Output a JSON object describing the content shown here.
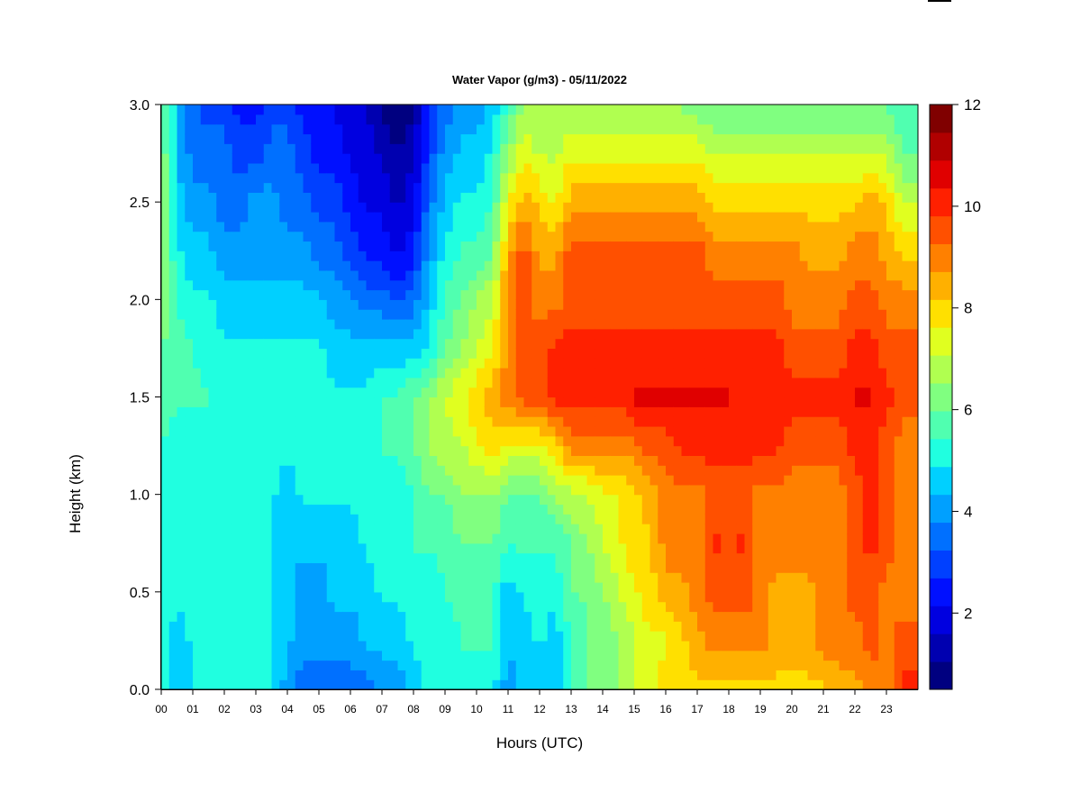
{
  "chart_data": {
    "type": "heatmap",
    "title": "Water Vapor (g/m3) - 05/11/2022",
    "xlabel": "Hours (UTC)",
    "ylabel": "Height (km)",
    "xlim": [
      0,
      24
    ],
    "ylim": [
      0,
      3.0
    ],
    "x_ticks": [
      "00",
      "01",
      "02",
      "03",
      "04",
      "05",
      "06",
      "07",
      "08",
      "09",
      "10",
      "11",
      "12",
      "13",
      "14",
      "15",
      "16",
      "17",
      "18",
      "19",
      "20",
      "21",
      "22",
      "23"
    ],
    "y_ticks": [
      "0.0",
      "0.5",
      "1.0",
      "1.5",
      "2.0",
      "2.5",
      "3.0"
    ],
    "colorbar": {
      "min": 0.5,
      "max": 12,
      "ticks": [
        "2",
        "4",
        "6",
        "8",
        "10",
        "12"
      ],
      "levels": [
        "#000080",
        "#0000B0",
        "#0000E0",
        "#0010FF",
        "#0040FF",
        "#0070FF",
        "#00A0FF",
        "#00D0FF",
        "#20FFE0",
        "#50FFB0",
        "#80FF80",
        "#B0FF50",
        "#E0FF20",
        "#FFE000",
        "#FFB000",
        "#FF8000",
        "#FF5000",
        "#FF2000",
        "#E00000",
        "#B00000",
        "#800000"
      ]
    },
    "x_hours": [
      0.0,
      0.5,
      1.0,
      1.5,
      2.0,
      2.5,
      3.0,
      3.5,
      4.0,
      4.5,
      5.0,
      5.5,
      6.0,
      6.5,
      7.0,
      7.5,
      8.0,
      8.5,
      9.0,
      9.5,
      10.0,
      10.5,
      11.0,
      11.5,
      12.0,
      12.5,
      13.0,
      13.5,
      14.0,
      14.5,
      15.0,
      15.5,
      16.0,
      16.5,
      17.0,
      17.5,
      18.0,
      18.5,
      19.0,
      19.5,
      20.0,
      20.5,
      21.0,
      21.5,
      22.0,
      22.5,
      23.0,
      23.5
    ],
    "y_km": [
      0.0,
      0.25,
      0.5,
      0.75,
      1.0,
      1.25,
      1.5,
      1.75,
      2.0,
      2.25,
      2.5,
      2.75,
      3.0
    ],
    "z_rows": [
      [
        5.5,
        4.5,
        5.0,
        5.0,
        5.0,
        5.0,
        5.0,
        5.0,
        4.0,
        3.5,
        3.5,
        3.5,
        3.5,
        3.5,
        4.0,
        4.0,
        4.5,
        5.0,
        5.0,
        5.0,
        5.0,
        5.0,
        4.0,
        4.5,
        5.0,
        4.5,
        5.5,
        6.0,
        6.0,
        6.5,
        7.0,
        7.5,
        8.0,
        8.0,
        8.0,
        8.0,
        8.0,
        8.0,
        8.0,
        8.0,
        8.0,
        8.0,
        8.0,
        8.5,
        8.5,
        9.0,
        9.0,
        10.0
      ],
      [
        5.5,
        4.5,
        5.0,
        5.0,
        5.0,
        5.0,
        5.0,
        5.0,
        4.5,
        4.0,
        4.0,
        4.0,
        4.0,
        4.5,
        4.5,
        4.5,
        5.0,
        5.0,
        5.0,
        5.5,
        5.5,
        5.5,
        4.5,
        4.5,
        5.0,
        4.5,
        5.5,
        6.0,
        6.0,
        6.5,
        7.0,
        7.5,
        7.5,
        8.0,
        8.5,
        9.0,
        9.0,
        9.0,
        9.0,
        8.5,
        8.5,
        8.5,
        9.0,
        9.0,
        9.0,
        9.5,
        9.0,
        9.5
      ],
      [
        5.5,
        5.0,
        5.0,
        5.0,
        5.0,
        5.0,
        5.0,
        5.0,
        4.5,
        4.0,
        4.0,
        4.5,
        4.5,
        4.5,
        5.0,
        5.0,
        5.0,
        5.0,
        5.5,
        5.5,
        5.5,
        5.5,
        4.5,
        5.0,
        5.0,
        5.0,
        6.0,
        6.0,
        6.5,
        7.0,
        7.5,
        8.0,
        8.5,
        8.5,
        9.0,
        9.5,
        9.5,
        9.5,
        9.0,
        8.5,
        8.5,
        8.5,
        9.0,
        9.0,
        9.5,
        9.5,
        9.0,
        9.0
      ],
      [
        5.5,
        5.0,
        5.0,
        5.0,
        5.0,
        5.0,
        5.0,
        5.0,
        4.5,
        4.5,
        4.5,
        4.5,
        4.5,
        5.0,
        5.0,
        5.0,
        5.5,
        5.5,
        5.5,
        6.0,
        6.0,
        6.0,
        5.5,
        5.5,
        5.5,
        5.5,
        6.0,
        6.5,
        7.0,
        7.5,
        8.0,
        8.0,
        9.0,
        9.0,
        9.0,
        10.0,
        9.5,
        10.0,
        9.0,
        9.0,
        9.0,
        9.0,
        9.0,
        9.0,
        9.5,
        10.0,
        9.5,
        9.0
      ],
      [
        5.5,
        5.0,
        5.0,
        5.0,
        5.0,
        5.0,
        5.0,
        5.0,
        4.5,
        5.0,
        5.0,
        5.0,
        5.0,
        5.0,
        5.0,
        5.0,
        5.5,
        6.0,
        6.0,
        6.5,
        6.5,
        6.5,
        6.0,
        6.0,
        6.0,
        6.5,
        7.0,
        7.0,
        7.5,
        7.5,
        8.0,
        8.5,
        9.0,
        9.0,
        9.0,
        9.5,
        9.5,
        9.5,
        9.0,
        9.0,
        9.0,
        9.0,
        9.0,
        9.0,
        9.5,
        10.0,
        9.5,
        9.0
      ],
      [
        5.5,
        5.0,
        5.0,
        5.0,
        5.0,
        5.0,
        5.0,
        5.0,
        5.0,
        5.0,
        5.0,
        5.0,
        5.0,
        5.0,
        5.5,
        5.5,
        6.0,
        6.5,
        7.0,
        7.0,
        7.5,
        8.0,
        7.5,
        7.5,
        7.5,
        8.0,
        9.0,
        9.0,
        9.0,
        9.0,
        9.0,
        9.5,
        9.5,
        10.0,
        10.0,
        10.0,
        10.0,
        10.0,
        10.0,
        10.0,
        9.5,
        9.5,
        9.5,
        9.5,
        10.0,
        10.0,
        9.5,
        9.0
      ],
      [
        6.0,
        5.5,
        5.5,
        5.5,
        5.0,
        5.0,
        5.0,
        5.0,
        5.0,
        5.0,
        5.0,
        5.0,
        5.0,
        5.0,
        5.5,
        5.5,
        6.0,
        6.5,
        7.0,
        7.5,
        8.0,
        8.5,
        9.0,
        9.5,
        9.5,
        10.0,
        10.0,
        10.0,
        10.0,
        10.0,
        10.5,
        10.5,
        10.5,
        10.5,
        10.5,
        10.5,
        10.5,
        10.0,
        10.0,
        10.0,
        10.0,
        10.0,
        10.0,
        10.0,
        10.5,
        10.5,
        10.0,
        9.5
      ],
      [
        6.0,
        5.5,
        5.5,
        5.0,
        5.0,
        5.0,
        5.0,
        5.0,
        5.0,
        5.0,
        5.0,
        4.5,
        4.5,
        4.5,
        4.5,
        4.5,
        4.5,
        5.0,
        6.0,
        6.5,
        7.0,
        7.5,
        9.0,
        9.5,
        9.5,
        10.0,
        10.0,
        10.0,
        10.0,
        10.0,
        10.0,
        10.0,
        10.0,
        10.0,
        10.0,
        10.0,
        10.0,
        10.0,
        10.0,
        10.0,
        9.5,
        9.5,
        9.5,
        9.5,
        10.0,
        10.0,
        9.5,
        9.5
      ],
      [
        6.5,
        5.5,
        5.0,
        5.0,
        4.5,
        4.5,
        4.5,
        4.5,
        4.5,
        4.5,
        4.5,
        4.0,
        4.0,
        3.5,
        3.5,
        3.0,
        3.5,
        4.5,
        5.5,
        6.0,
        6.5,
        7.0,
        9.0,
        9.5,
        9.0,
        9.0,
        9.5,
        9.5,
        9.5,
        9.5,
        9.5,
        9.5,
        9.5,
        9.5,
        9.5,
        9.5,
        9.5,
        9.5,
        9.5,
        9.5,
        9.0,
        9.0,
        9.0,
        9.0,
        9.5,
        9.5,
        9.0,
        9.0
      ],
      [
        6.5,
        5.0,
        4.5,
        4.5,
        4.0,
        4.0,
        4.0,
        4.0,
        4.0,
        4.0,
        3.5,
        3.5,
        3.0,
        2.5,
        2.5,
        2.0,
        2.5,
        4.0,
        5.0,
        5.5,
        5.5,
        6.0,
        8.5,
        9.5,
        8.5,
        8.5,
        9.5,
        9.5,
        9.5,
        9.5,
        9.5,
        9.5,
        9.5,
        9.5,
        9.5,
        9.0,
        9.0,
        9.0,
        9.0,
        9.0,
        9.0,
        8.5,
        8.5,
        8.5,
        9.0,
        9.0,
        8.5,
        8.0
      ],
      [
        6.5,
        4.5,
        4.0,
        4.0,
        3.5,
        3.5,
        4.0,
        4.0,
        3.5,
        3.5,
        3.0,
        3.0,
        2.5,
        2.0,
        2.0,
        1.5,
        2.0,
        3.5,
        4.5,
        5.0,
        5.0,
        5.5,
        7.5,
        8.5,
        8.0,
        7.5,
        8.5,
        8.5,
        8.5,
        8.5,
        8.5,
        8.5,
        8.5,
        8.5,
        8.5,
        8.0,
        8.0,
        8.0,
        8.0,
        8.0,
        8.0,
        8.0,
        8.0,
        8.0,
        8.0,
        8.5,
        8.0,
        7.0
      ],
      [
        6.5,
        4.5,
        3.5,
        3.5,
        3.5,
        3.0,
        3.0,
        3.5,
        3.5,
        3.0,
        2.5,
        2.5,
        2.0,
        2.0,
        1.5,
        1.0,
        1.5,
        3.0,
        4.0,
        4.5,
        4.5,
        5.0,
        6.5,
        7.5,
        7.0,
        7.0,
        7.5,
        7.5,
        7.5,
        7.5,
        7.5,
        7.5,
        7.5,
        7.5,
        7.5,
        7.0,
        7.0,
        7.0,
        7.0,
        7.0,
        7.0,
        7.0,
        7.0,
        7.0,
        7.0,
        7.0,
        7.0,
        6.0
      ],
      [
        6.0,
        4.5,
        3.5,
        3.0,
        3.0,
        2.5,
        2.5,
        3.0,
        3.0,
        2.5,
        2.5,
        2.0,
        2.0,
        1.5,
        1.0,
        0.5,
        1.0,
        2.5,
        3.5,
        4.0,
        4.0,
        4.5,
        5.5,
        6.5,
        6.5,
        6.5,
        6.5,
        6.5,
        6.5,
        6.5,
        6.5,
        6.5,
        6.5,
        6.5,
        6.0,
        6.0,
        6.0,
        6.0,
        6.0,
        6.0,
        6.0,
        6.0,
        6.0,
        6.0,
        6.0,
        6.0,
        6.0,
        5.5
      ]
    ]
  }
}
